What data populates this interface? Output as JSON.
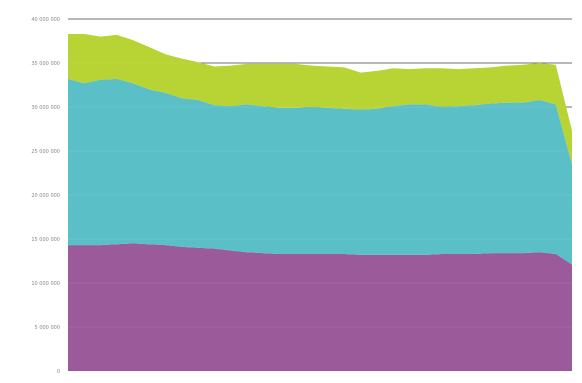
{
  "chart_data": {
    "type": "area",
    "stacked": true,
    "title": "",
    "xlabel": "",
    "ylabel": "",
    "ylim": [
      0,
      40000000
    ],
    "grid": true,
    "y_ticks": [
      0,
      5000000,
      10000000,
      15000000,
      20000000,
      25000000,
      30000000,
      35000000,
      40000000
    ],
    "y_tick_labels": [
      "0",
      "5 000 000",
      "10 000 000",
      "15 000 000",
      "20 000 000",
      "25 000 000",
      "30 000 000",
      "35 000 000",
      "40 000 000"
    ],
    "x": [
      1,
      2,
      3,
      4,
      5,
      6,
      7,
      8,
      9,
      10,
      11,
      12,
      13,
      14,
      15,
      16,
      17,
      18,
      19,
      20,
      21,
      22,
      23,
      24,
      25,
      26,
      27,
      28,
      29,
      30,
      31,
      32
    ],
    "x_tick_labels": [
      "",
      "",
      "",
      "",
      "",
      "",
      "",
      "",
      "",
      "",
      "",
      "",
      "",
      "",
      ""
    ],
    "series": [
      {
        "color": "#9b5b9b",
        "values": [
          14300000,
          14300000,
          14300000,
          14400000,
          14500000,
          14400000,
          14300000,
          14100000,
          14000000,
          13900000,
          13700000,
          13500000,
          13400000,
          13300000,
          13300000,
          13300000,
          13300000,
          13300000,
          13200000,
          13200000,
          13200000,
          13200000,
          13200000,
          13300000,
          13300000,
          13300000,
          13400000,
          13400000,
          13400000,
          13500000,
          13300000,
          12100000
        ]
      },
      {
        "color": "#5bbfc7",
        "values": [
          18900000,
          18400000,
          18800000,
          18800000,
          18200000,
          17600000,
          17300000,
          16900000,
          16800000,
          16300000,
          16400000,
          16800000,
          16700000,
          16600000,
          16600000,
          16700000,
          16600000,
          16500000,
          16500000,
          16600000,
          16900000,
          17100000,
          17100000,
          16700000,
          16800000,
          16900000,
          17000000,
          17100000,
          17100000,
          17300000,
          17000000,
          11400000
        ]
      },
      {
        "color": "#b7d334",
        "values": [
          5100000,
          5600000,
          4900000,
          5000000,
          4900000,
          4800000,
          4400000,
          4500000,
          4300000,
          4400000,
          4600000,
          4600000,
          4800000,
          5000000,
          5000000,
          4700000,
          4700000,
          4700000,
          4200000,
          4300000,
          4300000,
          4000000,
          4100000,
          4400000,
          4200000,
          4200000,
          4100000,
          4200000,
          4300000,
          4200000,
          4500000,
          3800000
        ]
      }
    ]
  }
}
